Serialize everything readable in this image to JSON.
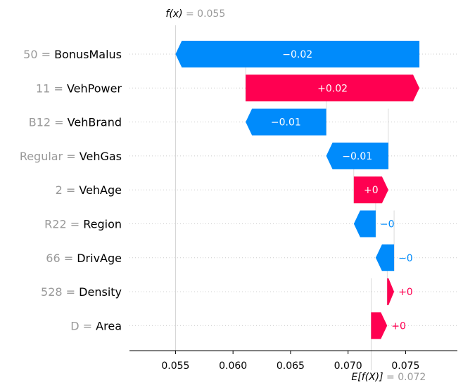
{
  "chart_data": {
    "type": "waterfall",
    "fx": {
      "label": "f(x)",
      "equals": " = ",
      "value_label": "0.055",
      "value": 0.055
    },
    "ex": {
      "label": "E[f(X)]",
      "equals": " = ",
      "value_label": "0.072",
      "value": 0.072
    },
    "xlim": [
      0.051,
      0.0795
    ],
    "xticks": [
      {
        "value": 0.055,
        "label": "0.055"
      },
      {
        "value": 0.06,
        "label": "0.060"
      },
      {
        "value": 0.065,
        "label": "0.065"
      },
      {
        "value": 0.07,
        "label": "0.070"
      },
      {
        "value": 0.075,
        "label": "0.075"
      }
    ],
    "features": [
      {
        "name": "BonusMalus",
        "value": "50",
        "start": 0.0762,
        "end": 0.055,
        "label": "−0.02"
      },
      {
        "name": "VehPower",
        "value": "11",
        "start": 0.0611,
        "end": 0.0762,
        "label": "+0.02"
      },
      {
        "name": "VehBrand",
        "value": "B12",
        "start": 0.0681,
        "end": 0.0611,
        "label": "−0.01"
      },
      {
        "name": "VehGas",
        "value": "Regular",
        "start": 0.0735,
        "end": 0.0681,
        "label": "−0.01"
      },
      {
        "name": "VehAge",
        "value": "2",
        "start": 0.0705,
        "end": 0.0735,
        "label": "+0"
      },
      {
        "name": "Region",
        "value": "R22",
        "start": 0.0724,
        "end": 0.0705,
        "label": "−0"
      },
      {
        "name": "DrivAge",
        "value": "66",
        "start": 0.074,
        "end": 0.0724,
        "label": "−0"
      },
      {
        "name": "Density",
        "value": "528",
        "start": 0.0734,
        "end": 0.074,
        "label": "+0"
      },
      {
        "name": "Area",
        "value": "D",
        "start": 0.072,
        "end": 0.0734,
        "label": "+0"
      }
    ],
    "colors": {
      "positive": "#ff0051",
      "negative": "#008bfb",
      "muted": "#999999",
      "grid": "#cccccc"
    }
  }
}
